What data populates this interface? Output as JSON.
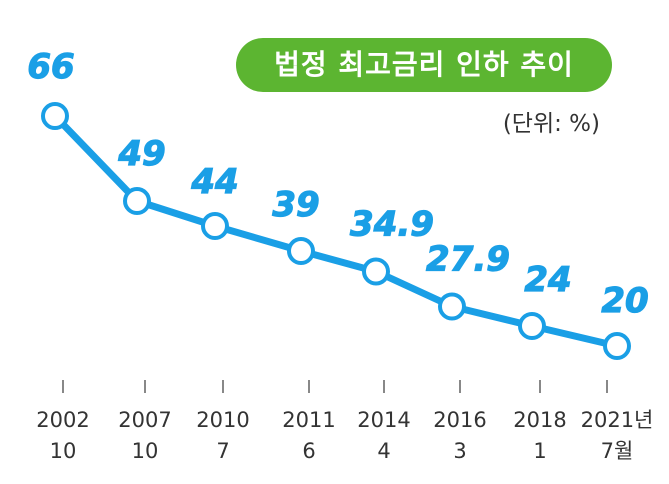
{
  "title": "법정 최고금리 인하 추이",
  "unit": "(단위: %)",
  "colors": {
    "line": "#1a9fe6",
    "point_fill": "#ffffff",
    "title_bg": "#5cb531",
    "tick": "#333333"
  },
  "chart_data": {
    "type": "line",
    "title": "법정 최고금리 인하 추이",
    "categories": [
      [
        "2002",
        "10"
      ],
      [
        "2007",
        "10"
      ],
      [
        "2010",
        "7"
      ],
      [
        "2011",
        "6"
      ],
      [
        "2014",
        "4"
      ],
      [
        "2016",
        "3"
      ],
      [
        "2018",
        "1"
      ],
      [
        "2021년",
        "7월"
      ]
    ],
    "series": [
      {
        "values": [
          66,
          49,
          44,
          39,
          34.9,
          27.9,
          24,
          20
        ]
      }
    ],
    "value_labels": [
      "66",
      "49",
      "44",
      "39",
      "34.9",
      "27.9",
      "24",
      "20"
    ],
    "ylim": [
      14,
      70
    ],
    "grid": false
  }
}
